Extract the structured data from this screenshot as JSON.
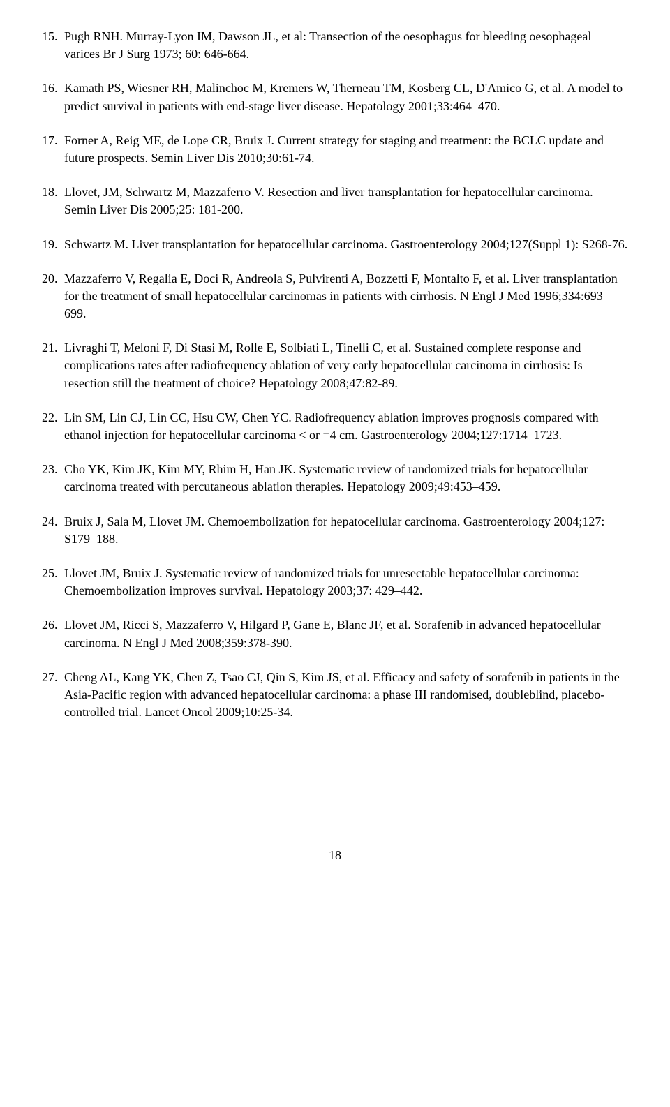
{
  "references": [
    {
      "number": "15.",
      "text": "Pugh RNH. Murray-Lyon IM, Dawson JL, et al: Transection of the oesophagus for bleeding oesophageal varices Br J Surg 1973; 60: 646-664."
    },
    {
      "number": "16.",
      "text": "Kamath PS, Wiesner RH, Malinchoc M, Kremers W, Therneau TM, Kosberg CL, D'Amico G, et al. A model to predict survival in patients with end-stage liver disease. Hepatology 2001;33:464–470."
    },
    {
      "number": "17.",
      "text": "Forner A, Reig ME, de Lope CR, Bruix J. Current strategy for staging and treatment: the BCLC update and future prospects. Semin Liver Dis 2010;30:61-74."
    },
    {
      "number": "18.",
      "text": "Llovet, JM, Schwartz M, Mazzaferro V. Resection and liver transplantation for hepatocellular carcinoma. Semin Liver Dis 2005;25: 181-200."
    },
    {
      "number": "19.",
      "text": "Schwartz M. Liver transplantation for hepatocellular carcinoma. Gastroenterology 2004;127(Suppl 1): S268-76."
    },
    {
      "number": "20.",
      "text": "Mazzaferro V, Regalia E, Doci R, Andreola S, Pulvirenti A, Bozzetti F, Montalto F, et al. Liver transplantation for the treatment of small hepatocellular carcinomas in patients with cirrhosis. N Engl J Med 1996;334:693–699."
    },
    {
      "number": "21.",
      "text": "Livraghi T, Meloni F, Di Stasi M, Rolle E, Solbiati L, Tinelli C, et al. Sustained complete response and complications rates after radiofrequency ablation of very early hepatocellular carcinoma in cirrhosis: Is resection still the treatment of choice? Hepatology 2008;47:82-89."
    },
    {
      "number": "22.",
      "text": "Lin SM, Lin CJ, Lin CC, Hsu CW, Chen YC. Radiofrequency ablation improves prognosis compared with ethanol injection for hepatocellular carcinoma < or =4 cm. Gastroenterology 2004;127:1714–1723."
    },
    {
      "number": "23.",
      "text": "Cho YK, Kim JK, Kim MY, Rhim H, Han JK. Systematic review of randomized trials for hepatocellular carcinoma treated with percutaneous ablation therapies. Hepatology 2009;49:453–459."
    },
    {
      "number": "24.",
      "text": "Bruix J, Sala M, Llovet JM. Chemoembolization for hepatocellular carcinoma. Gastroenterology 2004;127: S179–188."
    },
    {
      "number": "25.",
      "text": "Llovet JM, Bruix J. Systematic review of randomized trials for unresectable hepatocellular carcinoma: Chemoembolization improves survival. Hepatology 2003;37: 429–442."
    },
    {
      "number": "26.",
      "text": "Llovet JM, Ricci S, Mazzaferro V, Hilgard P, Gane E, Blanc JF, et al. Sorafenib in advanced hepatocellular carcinoma. N Engl J Med 2008;359:378-390."
    },
    {
      "number": "27.",
      "text": "Cheng AL, Kang YK, Chen Z, Tsao CJ, Qin S, Kim JS, et al. Efficacy and safety of sorafenib in patients in the Asia-Pacific region with advanced hepatocellular carcinoma: a phase III randomised, doubleblind, placebo-controlled trial. Lancet Oncol 2009;10:25-34."
    }
  ],
  "page_number": "18"
}
